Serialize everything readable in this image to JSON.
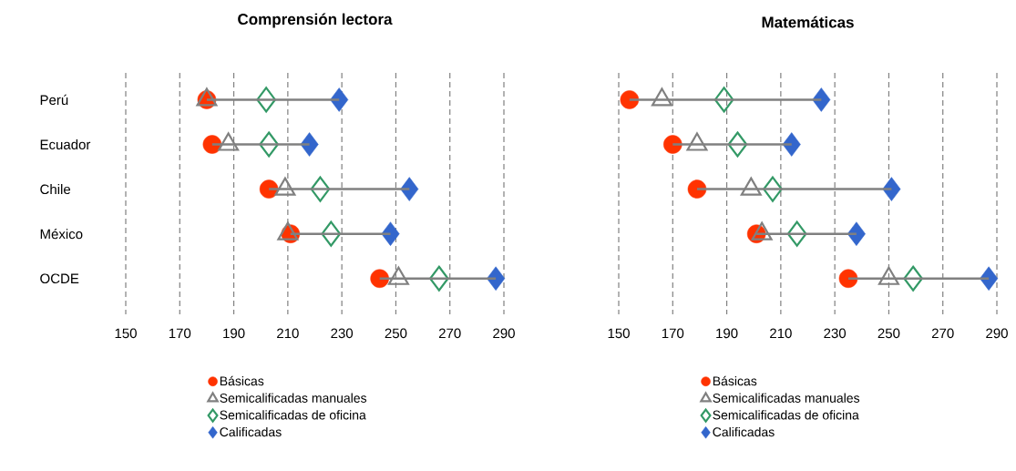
{
  "chart_data": [
    {
      "type": "scatter",
      "title": "Comprensión lectora",
      "orientation": "horizontal",
      "categories": [
        "Perú",
        "Ecuador",
        "Chile",
        "México",
        "OCDE"
      ],
      "xlim": [
        150,
        290
      ],
      "xticks": [
        150,
        170,
        190,
        210,
        230,
        250,
        270,
        290
      ],
      "grid": "x",
      "legend": "bottom",
      "series": [
        {
          "name": "Básicas",
          "color": "#ff3300",
          "marker": "circle",
          "values": [
            180,
            182,
            203,
            211,
            244
          ]
        },
        {
          "name": "Semicalificadas manuales",
          "color": "#808080",
          "marker": "triangle",
          "values": [
            180,
            188,
            209,
            210,
            251
          ]
        },
        {
          "name": "Semicalificadas de oficina",
          "color": "#339966",
          "marker": "diamond",
          "values": [
            202,
            203,
            222,
            226,
            266
          ]
        },
        {
          "name": "Calificadas",
          "color": "#3366cc",
          "marker": "diamond",
          "values": [
            229,
            218,
            255,
            248,
            287
          ]
        },
        {
          "type": "bar",
          "color": "#808080",
          "base": [
            180,
            182,
            203,
            211,
            244
          ],
          "values": [
            49,
            36,
            52,
            37,
            43
          ]
        }
      ]
    },
    {
      "type": "scatter",
      "title": "Matemáticas",
      "orientation": "horizontal",
      "categories": [
        null,
        null,
        null,
        null,
        null
      ],
      "tick_labels": "x",
      "xlim": [
        150,
        290
      ],
      "xticks": [
        150,
        170,
        190,
        210,
        230,
        250,
        270,
        290
      ],
      "grid": "x",
      "legend": "bottom",
      "series": [
        {
          "name": "Básicas",
          "color": "#ff3300",
          "marker": "circle",
          "values": [
            154,
            170,
            179,
            201,
            235
          ]
        },
        {
          "name": "Semicalificadas manuales",
          "color": "#808080",
          "marker": "triangle",
          "values": [
            166,
            179,
            199,
            203,
            250
          ]
        },
        {
          "name": "Semicalificadas de oficina",
          "color": "#339966",
          "marker": "diamond",
          "values": [
            189,
            194,
            207,
            216,
            259
          ]
        },
        {
          "name": "Calificadas",
          "color": "#3366cc",
          "marker": "diamond",
          "values": [
            225,
            214,
            251,
            238,
            287
          ]
        },
        {
          "type": "bar",
          "color": "#808080",
          "base": [
            154,
            170,
            179,
            201,
            235
          ],
          "values": [
            71,
            44,
            72,
            37,
            52
          ]
        }
      ]
    }
  ]
}
